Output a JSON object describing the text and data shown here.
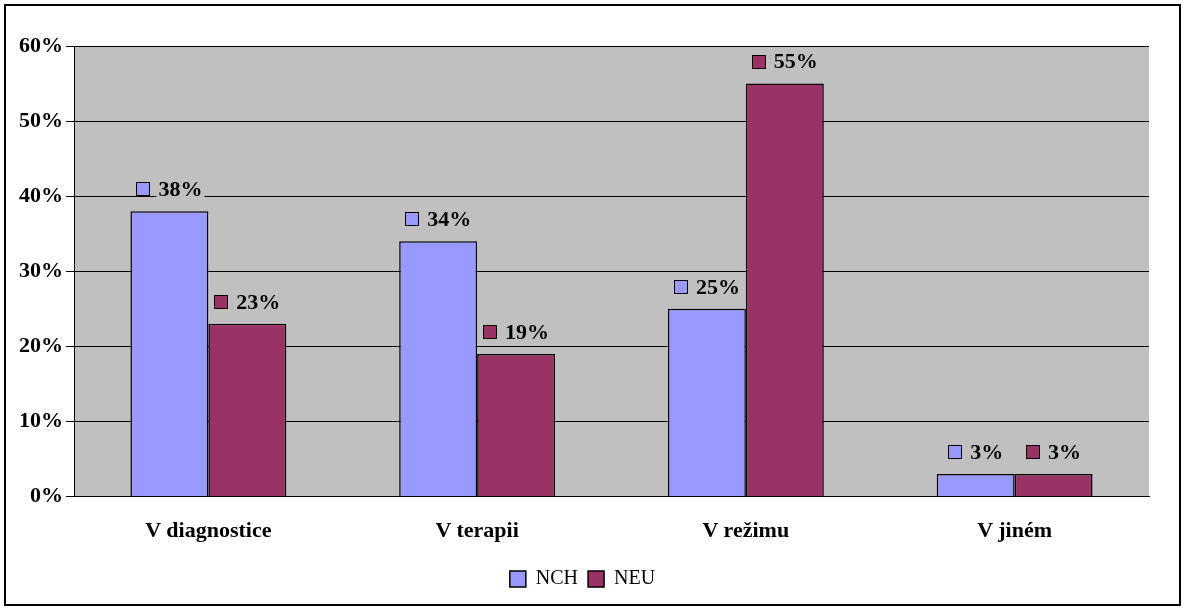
{
  "chart_data": {
    "type": "bar",
    "categories": [
      "V diagnostice",
      "V terapii",
      "V režimu",
      "V jiném"
    ],
    "series": [
      {
        "name": "NCH",
        "color": "#9999ff",
        "values": [
          38,
          34,
          25,
          3
        ],
        "value_labels": [
          "38%",
          "34%",
          "25%",
          "3%"
        ]
      },
      {
        "name": "NEU",
        "color": "#993366",
        "values": [
          23,
          19,
          55,
          3
        ],
        "value_labels": [
          "23%",
          "19%",
          "55%",
          "3%"
        ]
      }
    ],
    "ylim": [
      0,
      60
    ],
    "yticks": [
      {
        "value": 0,
        "label": "0%"
      },
      {
        "value": 10,
        "label": "10%"
      },
      {
        "value": 20,
        "label": "20%"
      },
      {
        "value": 30,
        "label": "30%"
      },
      {
        "value": 40,
        "label": "40%"
      },
      {
        "value": 50,
        "label": "50%"
      },
      {
        "value": 60,
        "label": "60%"
      }
    ],
    "grid": "y",
    "legend": "bottom"
  }
}
